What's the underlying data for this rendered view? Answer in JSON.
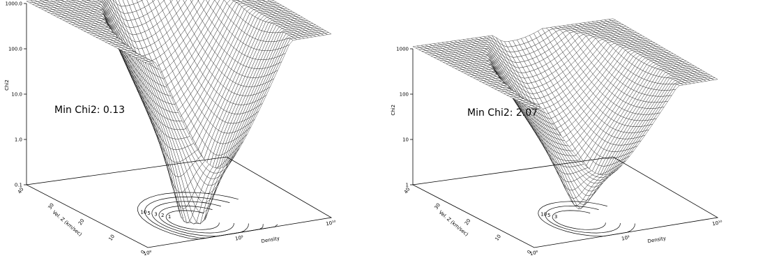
{
  "chart_data": [
    {
      "type": "surface",
      "title": "",
      "zlabel": "Chi2",
      "xlabel": "Density",
      "ylabel": "Vel. Z (km/sec)",
      "zscale": "log",
      "zlim": [
        0.1,
        1000.0
      ],
      "z_ticks": [
        "0.1",
        "1.0",
        "10.0",
        "100.0",
        "1000.0"
      ],
      "y_ticks": [
        "0",
        "10",
        "20",
        "30",
        "40"
      ],
      "x_ticks": [
        "10⁸",
        "10⁹",
        "10¹⁰"
      ],
      "annotation": "Min Chi2: 0.13",
      "min_chi2": 0.13,
      "minimum_depth": "deep",
      "contour_levels_visible": [
        "10",
        "5",
        "3",
        "2",
        "1"
      ]
    },
    {
      "type": "surface",
      "title": "",
      "zlabel": "Chi2",
      "xlabel": "Density",
      "ylabel": "Vel. Z (km/sec)",
      "zscale": "log",
      "zlim": [
        1,
        1000
      ],
      "z_ticks": [
        "1",
        "10",
        "100",
        "1000"
      ],
      "y_ticks": [
        "0",
        "10",
        "20",
        "30",
        "40"
      ],
      "x_ticks": [
        "10⁸",
        "10⁹",
        "10¹⁰"
      ],
      "annotation": "Min Chi2: 2.07",
      "min_chi2": 2.07,
      "minimum_depth": "shallow",
      "contour_levels_visible": [
        "10",
        "5",
        "3"
      ]
    }
  ]
}
